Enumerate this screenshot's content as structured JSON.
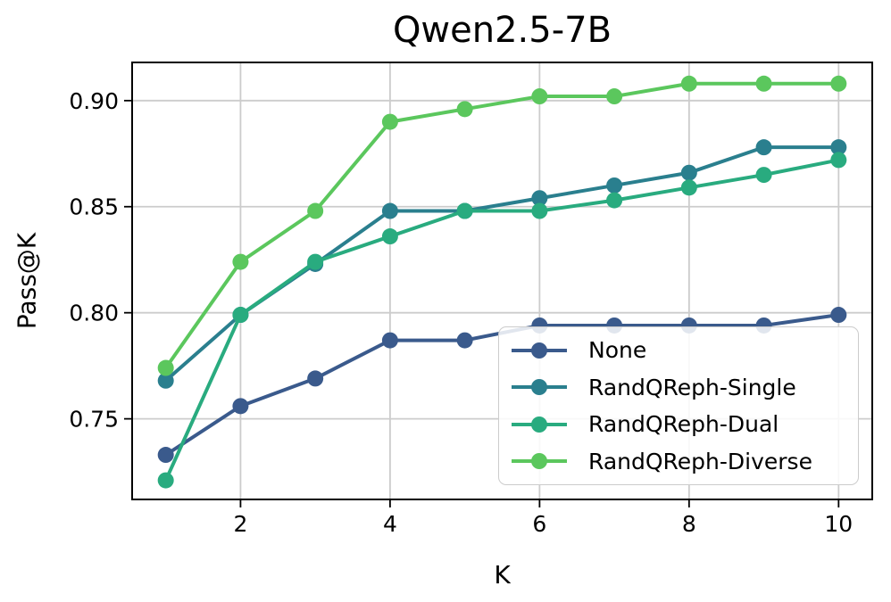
{
  "chart_data": {
    "type": "line",
    "title": "Qwen2.5-7B",
    "xlabel": "K",
    "ylabel": "Pass@K",
    "x": [
      1,
      2,
      3,
      4,
      5,
      6,
      7,
      8,
      9,
      10
    ],
    "xticks": [
      2,
      4,
      6,
      8,
      10
    ],
    "xtick_labels": [
      "2",
      "4",
      "6",
      "8",
      "10"
    ],
    "yticks": [
      0.75,
      0.8,
      0.85,
      0.9
    ],
    "ytick_labels": [
      "0.75",
      "0.80",
      "0.85",
      "0.90"
    ],
    "xlim": [
      0.55,
      10.45
    ],
    "ylim": [
      0.712,
      0.918
    ],
    "grid": true,
    "grid_color": "#cccccc",
    "frame_color": "#000000",
    "legend_position": "lower right",
    "series": [
      {
        "name": "None",
        "color": "#3A5A8C",
        "values": [
          0.733,
          0.756,
          0.769,
          0.787,
          0.787,
          0.794,
          0.794,
          0.794,
          0.794,
          0.799
        ]
      },
      {
        "name": "RandQReph-Single",
        "color": "#2A7F8E",
        "values": [
          0.768,
          0.799,
          0.823,
          0.848,
          0.848,
          0.854,
          0.86,
          0.866,
          0.878,
          0.878
        ]
      },
      {
        "name": "RandQReph-Dual",
        "color": "#29AB7F",
        "values": [
          0.721,
          0.799,
          0.824,
          0.836,
          0.848,
          0.848,
          0.853,
          0.859,
          0.865,
          0.872
        ]
      },
      {
        "name": "RandQReph-Diverse",
        "color": "#5BC75D",
        "values": [
          0.774,
          0.824,
          0.848,
          0.89,
          0.896,
          0.902,
          0.902,
          0.908,
          0.908,
          0.908
        ]
      }
    ]
  }
}
